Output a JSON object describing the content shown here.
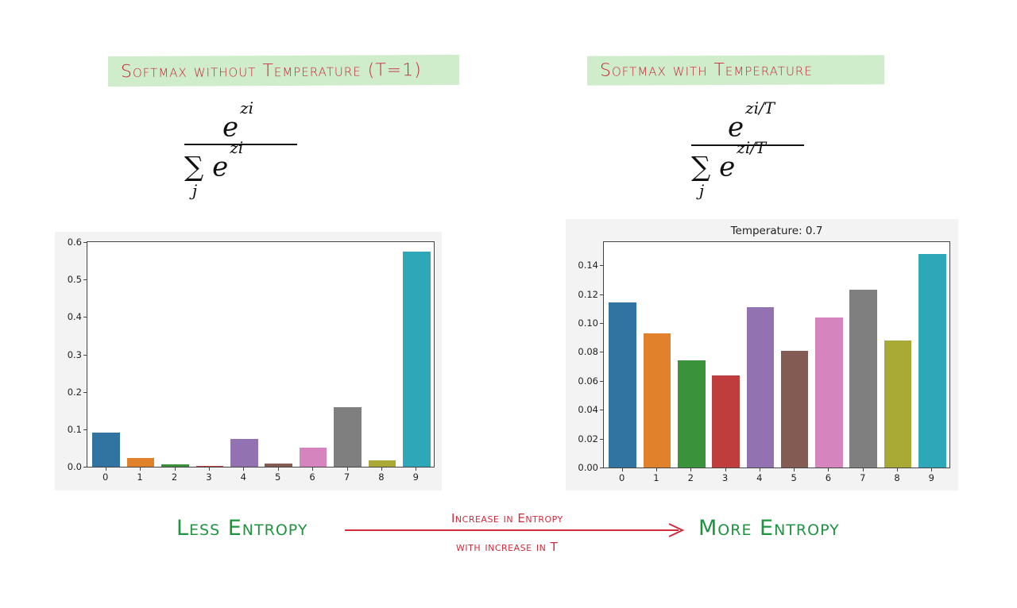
{
  "left_panel": {
    "banner": "Softmax without Temperature (T=1)",
    "formula": {
      "numerator_base": "e",
      "numerator_exp": "zi",
      "denominator_sigma": "∑",
      "denominator_index": "j",
      "denominator_base": "e",
      "denominator_exp": "zi"
    }
  },
  "right_panel": {
    "banner": "Softmax with Temperature",
    "formula": {
      "numerator_base": "e",
      "numerator_exp": "zi/T",
      "denominator_sigma": "∑",
      "denominator_index": "j",
      "denominator_base": "e",
      "denominator_exp": "zi/T"
    }
  },
  "bottom": {
    "left_label": "Less Entropy",
    "right_label": "More Entropy",
    "arrow_top": "Increase in Entropy",
    "arrow_bottom": "with increase in T",
    "arrow_color": "#d42a3c",
    "label_color": "#1f9440"
  },
  "chart_data": [
    {
      "type": "bar",
      "title": "",
      "xlabel": "",
      "ylabel": "",
      "categories": [
        "0",
        "1",
        "2",
        "3",
        "4",
        "5",
        "6",
        "7",
        "8",
        "9"
      ],
      "values": [
        0.092,
        0.023,
        0.006,
        0.003,
        0.075,
        0.009,
        0.051,
        0.159,
        0.018,
        0.575
      ],
      "colors": [
        "#3274a1",
        "#e1812c",
        "#3a923a",
        "#c03d3e",
        "#9372b2",
        "#845b53",
        "#d684bd",
        "#7f7f7f",
        "#a9aa35",
        "#2ea8b8"
      ],
      "ylim": [
        0,
        0.6
      ],
      "yticks": [
        "0.0",
        "0.1",
        "0.2",
        "0.3",
        "0.4",
        "0.5",
        "0.6"
      ],
      "ytick_values": [
        0,
        0.1,
        0.2,
        0.3,
        0.4,
        0.5,
        0.6
      ],
      "grid": false,
      "legend": null
    },
    {
      "type": "bar",
      "title": "Temperature: 0.7",
      "xlabel": "",
      "ylabel": "",
      "categories": [
        "0",
        "1",
        "2",
        "3",
        "4",
        "5",
        "6",
        "7",
        "8",
        "9"
      ],
      "values": [
        0.114,
        0.093,
        0.074,
        0.064,
        0.111,
        0.081,
        0.104,
        0.123,
        0.088,
        0.148
      ],
      "colors": [
        "#3274a1",
        "#e1812c",
        "#3a923a",
        "#c03d3e",
        "#9372b2",
        "#845b53",
        "#d684bd",
        "#7f7f7f",
        "#a9aa35",
        "#2ea8b8"
      ],
      "ylim": [
        0,
        0.156
      ],
      "yticks": [
        "0.00",
        "0.02",
        "0.04",
        "0.06",
        "0.08",
        "0.10",
        "0.12",
        "0.14"
      ],
      "ytick_values": [
        0,
        0.02,
        0.04,
        0.06,
        0.08,
        0.1,
        0.12,
        0.14
      ],
      "grid": false,
      "legend": null
    }
  ]
}
